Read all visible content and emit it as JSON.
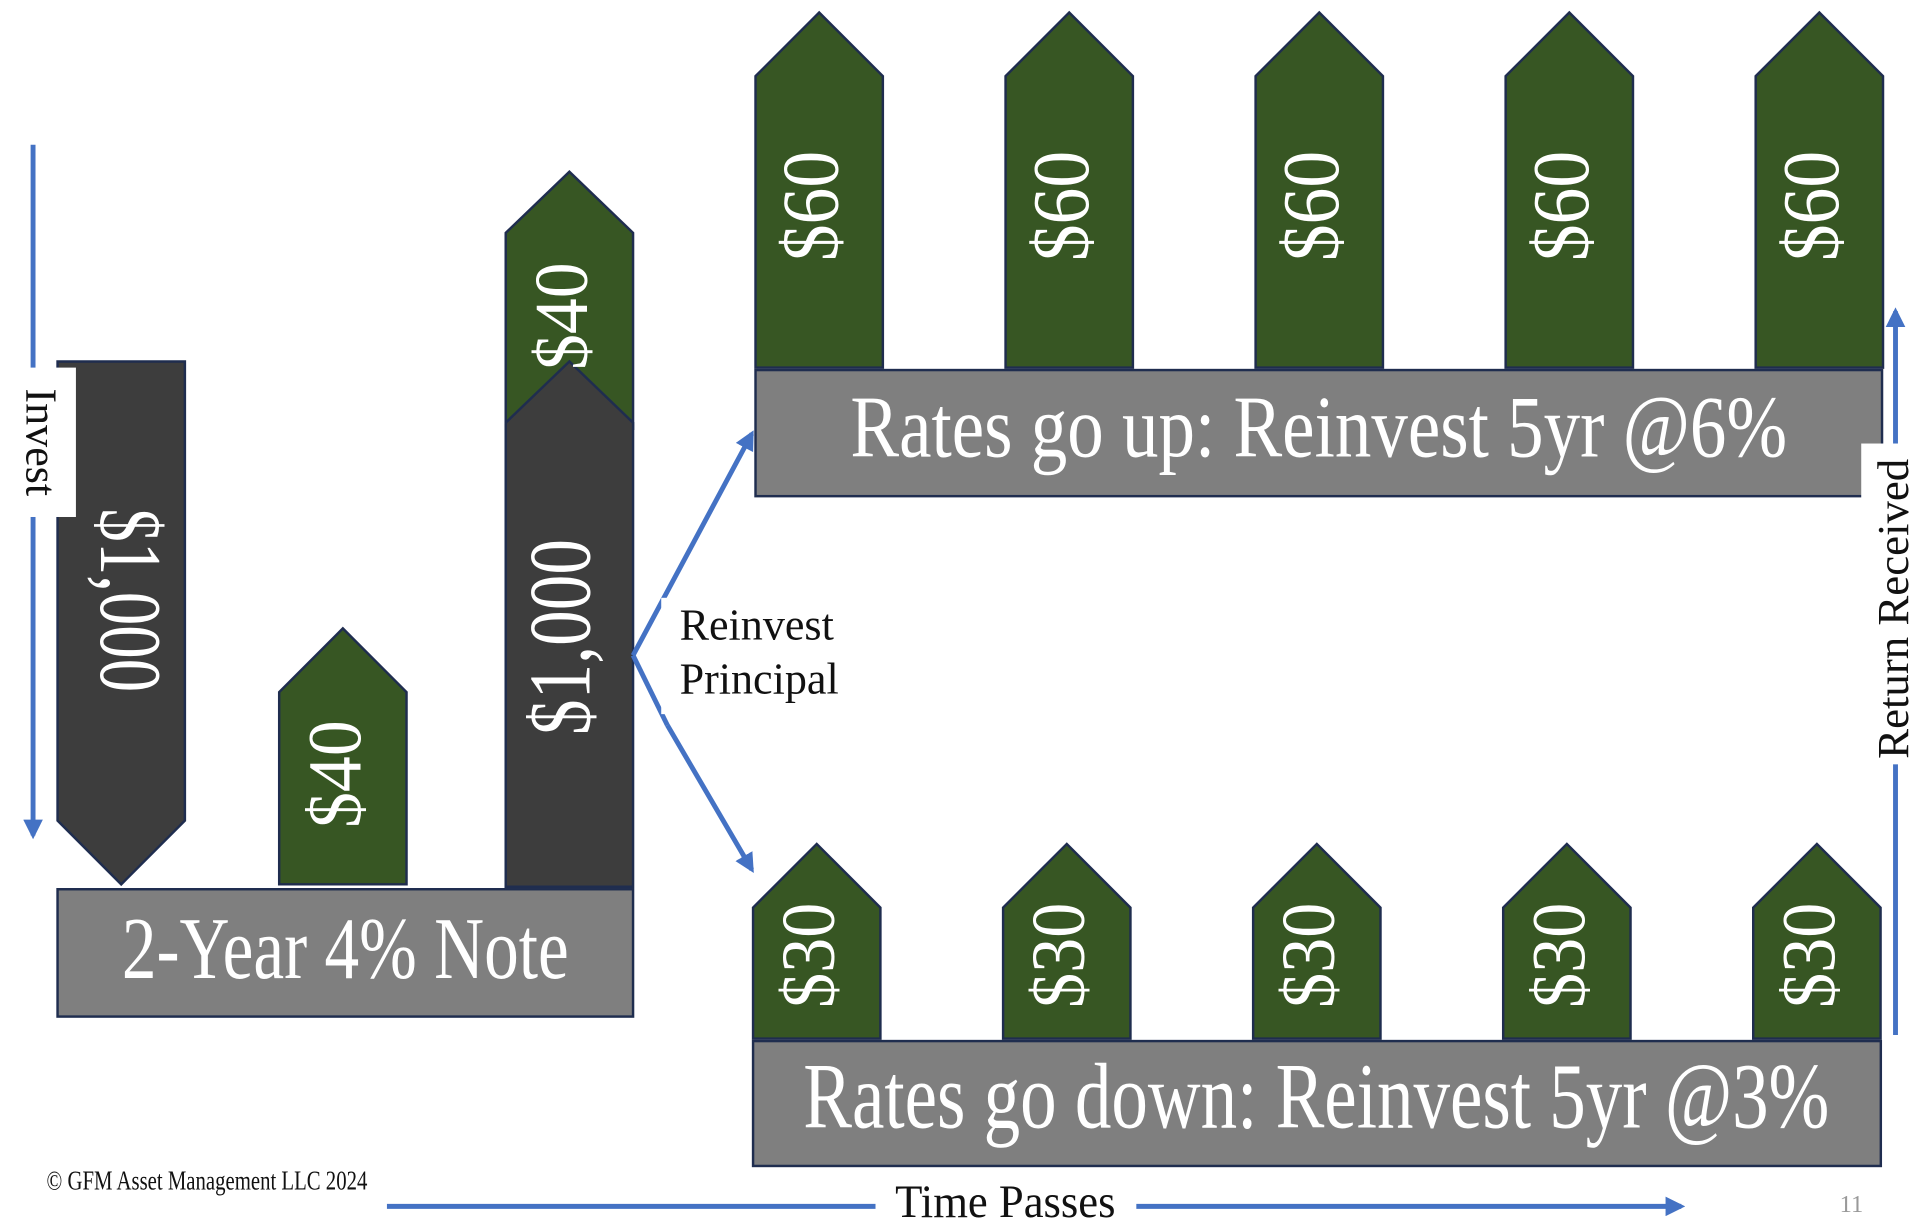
{
  "note": {
    "label": "2-Year 4% Note",
    "principal": "$1,000",
    "coupons": [
      "$40",
      "$40"
    ],
    "returned": "$1,000"
  },
  "reinvest": [
    "Reinvest",
    "Principal"
  ],
  "scenario_up": {
    "label": "Rates go up: Reinvest 5yr @6%",
    "payments": [
      "$60",
      "$60",
      "$60",
      "$60",
      "$60"
    ]
  },
  "scenario_down": {
    "label": "Rates go down: Reinvest 5yr @3%",
    "payments": [
      "$30",
      "$30",
      "$30",
      "$30",
      "$30"
    ]
  },
  "axes": {
    "invest": "Invest",
    "time": "Time Passes",
    "return": "Return Received"
  },
  "footer": {
    "copyright": "© GFM Asset Management LLC 2024",
    "page": "11"
  }
}
